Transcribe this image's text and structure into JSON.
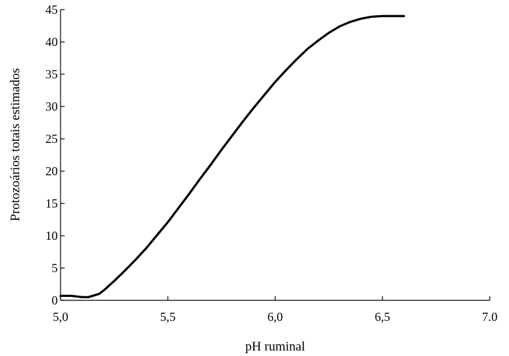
{
  "chart_data": {
    "type": "line",
    "title": "",
    "xlabel": "pH ruminal",
    "ylabel": "Protozoários totais estimados",
    "xlim": [
      5.0,
      7.0
    ],
    "ylim": [
      0,
      45
    ],
    "x_ticks": [
      5.0,
      5.5,
      6.0,
      6.5,
      7.0
    ],
    "x_tick_labels": [
      "5,0",
      "5,5",
      "6,0",
      "6,5",
      "7.0"
    ],
    "y_ticks": [
      0,
      5,
      10,
      15,
      20,
      25,
      30,
      35,
      40,
      45
    ],
    "y_tick_labels": [
      "0",
      "5",
      "10",
      "15",
      "20",
      "25",
      "30",
      "35",
      "40",
      "45"
    ],
    "grid": false,
    "legend": "none",
    "line_color": "#000000",
    "series": [
      {
        "x": [
          5.0,
          5.05,
          5.1,
          5.13,
          5.15,
          5.18,
          5.2,
          5.25,
          5.3,
          5.35,
          5.4,
          5.45,
          5.5,
          5.55,
          5.6,
          5.65,
          5.7,
          5.75,
          5.8,
          5.85,
          5.9,
          5.95,
          6.0,
          6.05,
          6.1,
          6.15,
          6.2,
          6.25,
          6.3,
          6.35,
          6.4,
          6.45,
          6.5,
          6.55,
          6.6
        ],
        "y": [
          0.7,
          0.7,
          0.5,
          0.5,
          0.7,
          1.0,
          1.5,
          3.0,
          4.6,
          6.3,
          8.1,
          10.1,
          12.1,
          14.3,
          16.5,
          18.8,
          21.0,
          23.3,
          25.5,
          27.7,
          29.8,
          31.8,
          33.8,
          35.6,
          37.3,
          38.9,
          40.2,
          41.4,
          42.4,
          43.1,
          43.6,
          43.9,
          44.0,
          44.0,
          44.0
        ]
      }
    ]
  }
}
